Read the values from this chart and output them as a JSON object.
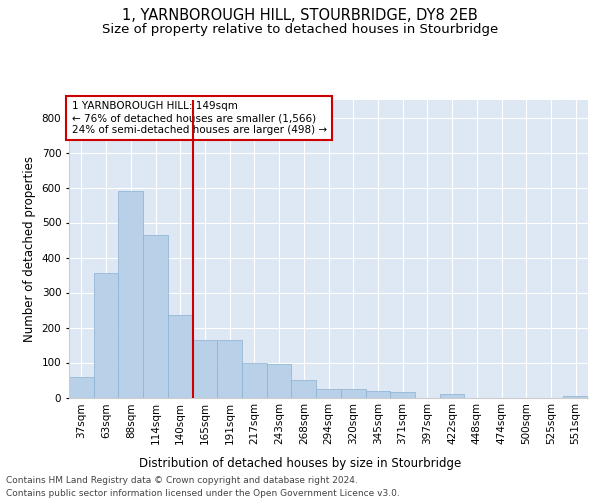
{
  "title": "1, YARNBOROUGH HILL, STOURBRIDGE, DY8 2EB",
  "subtitle": "Size of property relative to detached houses in Stourbridge",
  "xlabel": "Distribution of detached houses by size in Stourbridge",
  "ylabel": "Number of detached properties",
  "categories": [
    "37sqm",
    "63sqm",
    "88sqm",
    "114sqm",
    "140sqm",
    "165sqm",
    "191sqm",
    "217sqm",
    "243sqm",
    "268sqm",
    "294sqm",
    "320sqm",
    "345sqm",
    "371sqm",
    "397sqm",
    "422sqm",
    "448sqm",
    "474sqm",
    "500sqm",
    "525sqm",
    "551sqm"
  ],
  "values": [
    60,
    355,
    590,
    465,
    235,
    165,
    165,
    100,
    95,
    50,
    25,
    25,
    20,
    15,
    0,
    10,
    0,
    0,
    0,
    0,
    5
  ],
  "bar_color": "#b8d0e8",
  "bar_edgecolor": "#8cb0d0",
  "bg_color": "#dde8f4",
  "vline_color": "#cc0000",
  "annotation_text": "1 YARNBOROUGH HILL: 149sqm\n← 76% of detached houses are smaller (1,566)\n24% of semi-detached houses are larger (498) →",
  "annotation_box_color": "#cc0000",
  "ylim": [
    0,
    850
  ],
  "yticks": [
    0,
    100,
    200,
    300,
    400,
    500,
    600,
    700,
    800
  ],
  "footer_line1": "Contains HM Land Registry data © Crown copyright and database right 2024.",
  "footer_line2": "Contains public sector information licensed under the Open Government Licence v3.0.",
  "title_fontsize": 10.5,
  "subtitle_fontsize": 9.5,
  "axis_label_fontsize": 8.5,
  "tick_fontsize": 7.5,
  "annotation_fontsize": 7.5,
  "footer_fontsize": 6.5
}
